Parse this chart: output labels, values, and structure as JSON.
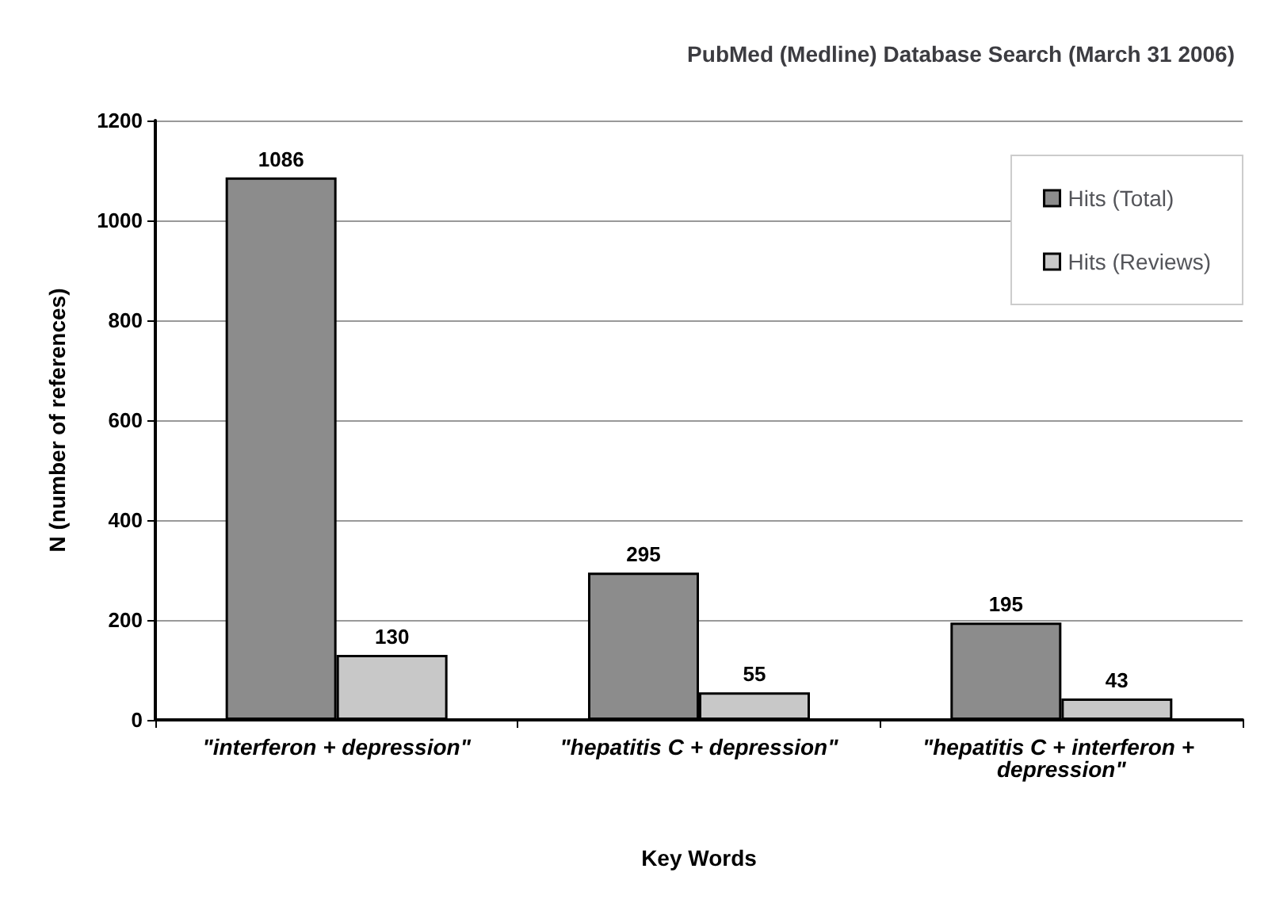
{
  "chart_data": {
    "type": "bar",
    "title": "PubMed (Medline) Database Search (March 31 2006)",
    "xlabel": "Key Words",
    "ylabel": "N (number of references)",
    "categories": [
      "\"interferon + depression\"",
      "\"hepatitis C + depression\"",
      "\"hepatitis C + interferon + depression\""
    ],
    "series": [
      {
        "name": "Hits (Total)",
        "color": "#8c8c8c",
        "values": [
          1086,
          295,
          195
        ]
      },
      {
        "name": "Hits (Reviews)",
        "color": "#c8c8c8",
        "values": [
          130,
          55,
          43
        ]
      }
    ],
    "ylim": [
      0,
      1200
    ],
    "yticks": [
      0,
      200,
      400,
      600,
      800,
      1000,
      1200
    ],
    "grid": "y",
    "legend": "top right",
    "data_labels": true
  }
}
